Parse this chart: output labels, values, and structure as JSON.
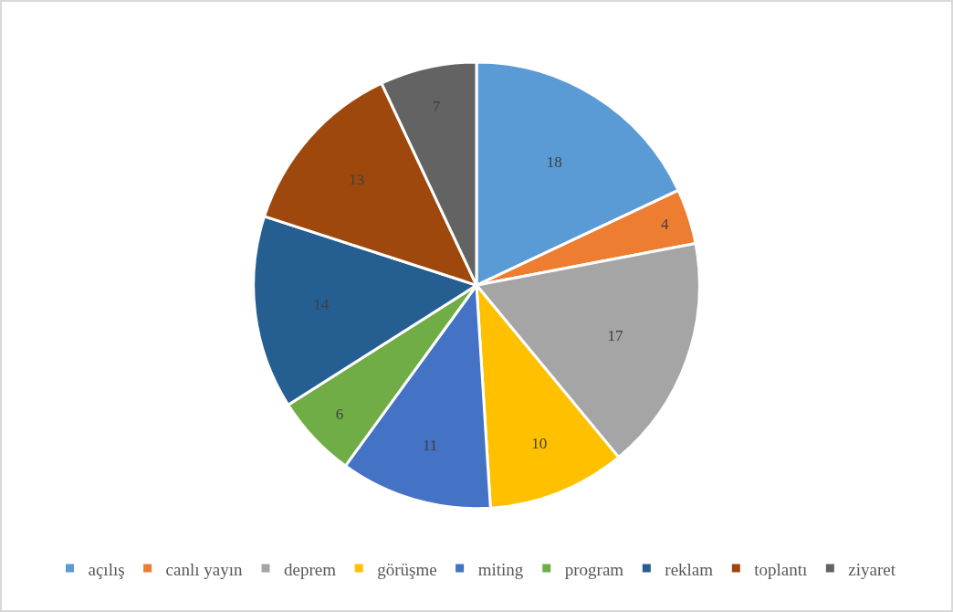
{
  "chart_data": {
    "type": "pie",
    "categories": [
      "açılış",
      "canlı yayın",
      "deprem",
      "görüşme",
      "miting",
      "program",
      "reklam",
      "toplantı",
      "ziyaret"
    ],
    "values": [
      18,
      4,
      17,
      10,
      11,
      6,
      14,
      13,
      7
    ],
    "colors": [
      "#5b9bd5",
      "#ed7d31",
      "#a5a5a5",
      "#ffc000",
      "#4472c4",
      "#70ad47",
      "#255e91",
      "#9e480e",
      "#636363"
    ],
    "data_labels": true,
    "legend": "bottom"
  }
}
